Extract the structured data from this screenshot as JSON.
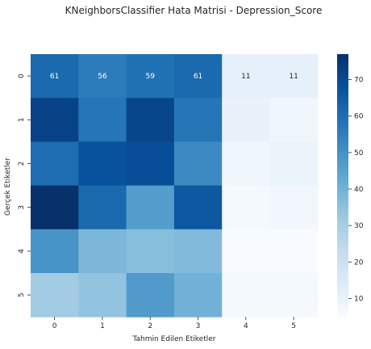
{
  "chart_data": {
    "type": "heatmap",
    "title": "KNeighborsClassifier Hata Matrisi - Depression_Score",
    "xlabel": "Tahmin Edilen Etiketler",
    "ylabel": "Gerçek Etiketler",
    "x_categories": [
      "0",
      "1",
      "2",
      "3",
      "4",
      "5"
    ],
    "y_categories": [
      "0",
      "1",
      "2",
      "3",
      "4",
      "5"
    ],
    "values": [
      [
        61,
        56,
        59,
        61,
        11,
        11
      ],
      [
        72,
        58,
        71,
        58,
        10,
        8
      ],
      [
        60,
        68,
        69,
        52,
        8,
        9
      ],
      [
        77,
        61,
        46,
        66,
        6,
        7
      ],
      [
        49,
        38,
        36,
        37,
        5,
        5
      ],
      [
        31,
        34,
        47,
        40,
        6,
        6
      ]
    ],
    "annotated_row": 0,
    "colormap": "Blues",
    "colorbar": {
      "range": [
        5,
        77
      ],
      "ticks": [
        10,
        20,
        30,
        40,
        50,
        60,
        70
      ]
    }
  }
}
